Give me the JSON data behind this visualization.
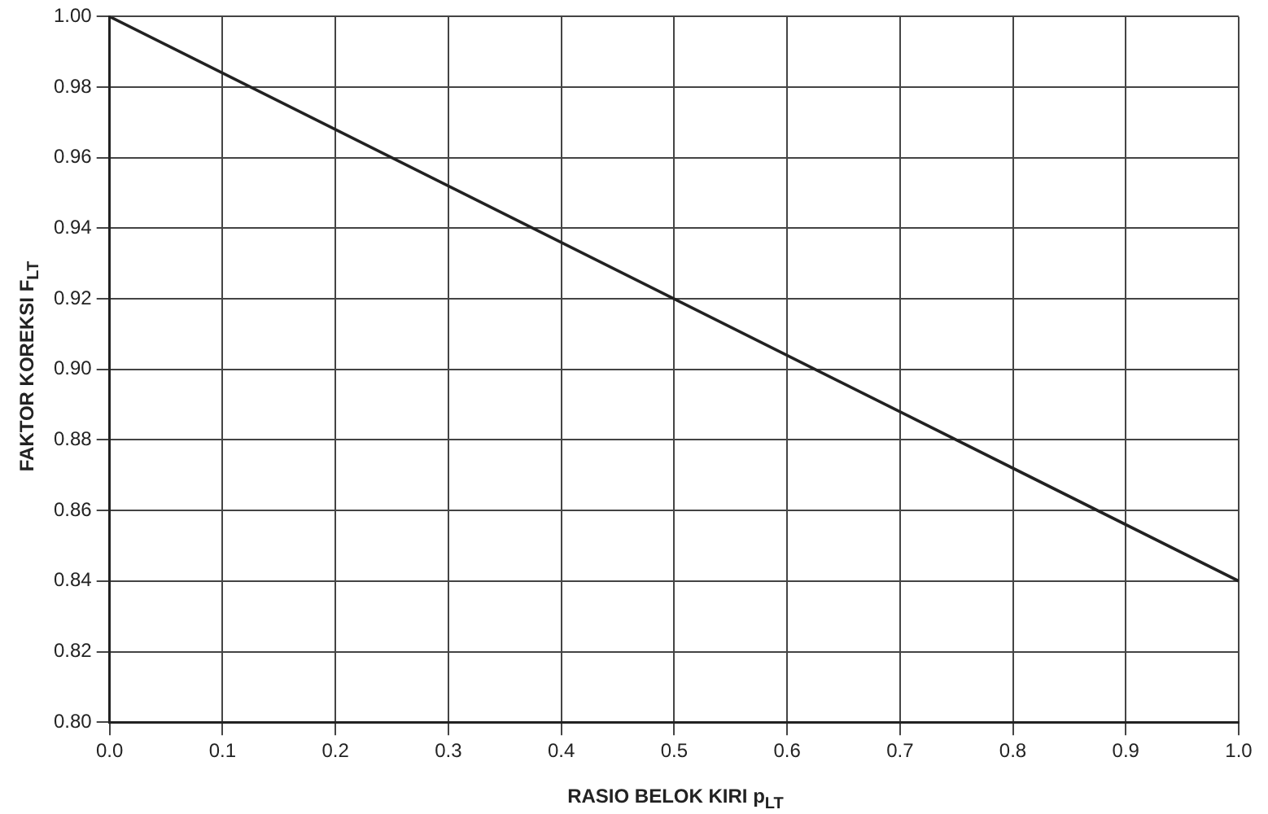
{
  "chart_data": {
    "type": "line",
    "xlabel": "RASIO BELOK KIRI p$_{LT}$",
    "ylabel": "FAKTOR KOREKSI F$_{LT}$",
    "x": [
      0,
      1
    ],
    "series": [
      {
        "color": "#222222",
        "values": [
          1.0,
          0.84
        ]
      }
    ],
    "xlim": [
      0,
      1
    ],
    "xticks": [
      {
        "value": 0,
        "label": "0.0"
      },
      {
        "value": 0.1,
        "label": "0.1"
      },
      {
        "value": 0.2,
        "label": "0.2"
      },
      {
        "value": 0.3,
        "label": "0.3"
      },
      {
        "value": 0.4,
        "label": "0.4"
      },
      {
        "value": 0.5,
        "label": "0.5"
      },
      {
        "value": 0.6,
        "label": "0.6"
      },
      {
        "value": 0.7,
        "label": "0.7"
      },
      {
        "value": 0.8,
        "label": "0.8"
      },
      {
        "value": 0.9,
        "label": "0.9"
      },
      {
        "value": 1,
        "label": "1.0"
      }
    ],
    "ylim": [
      0.8,
      1.0
    ],
    "yticks": [
      {
        "value": 0.8,
        "label": "0.80"
      },
      {
        "value": 0.82,
        "label": "0.82"
      },
      {
        "value": 0.84,
        "label": "0.84"
      },
      {
        "value": 0.86,
        "label": "0.86"
      },
      {
        "value": 0.88,
        "label": "0.88"
      },
      {
        "value": 0.9,
        "label": "0.90"
      },
      {
        "value": 0.92,
        "label": "0.92"
      },
      {
        "value": 0.94,
        "label": "0.94"
      },
      {
        "value": 0.96,
        "label": "0.96"
      },
      {
        "value": 0.98,
        "label": "0.98"
      },
      {
        "value": 1.0,
        "label": "1.00"
      }
    ],
    "grid": true,
    "legend": false,
    "marker": "none",
    "line_style": "solid"
  }
}
